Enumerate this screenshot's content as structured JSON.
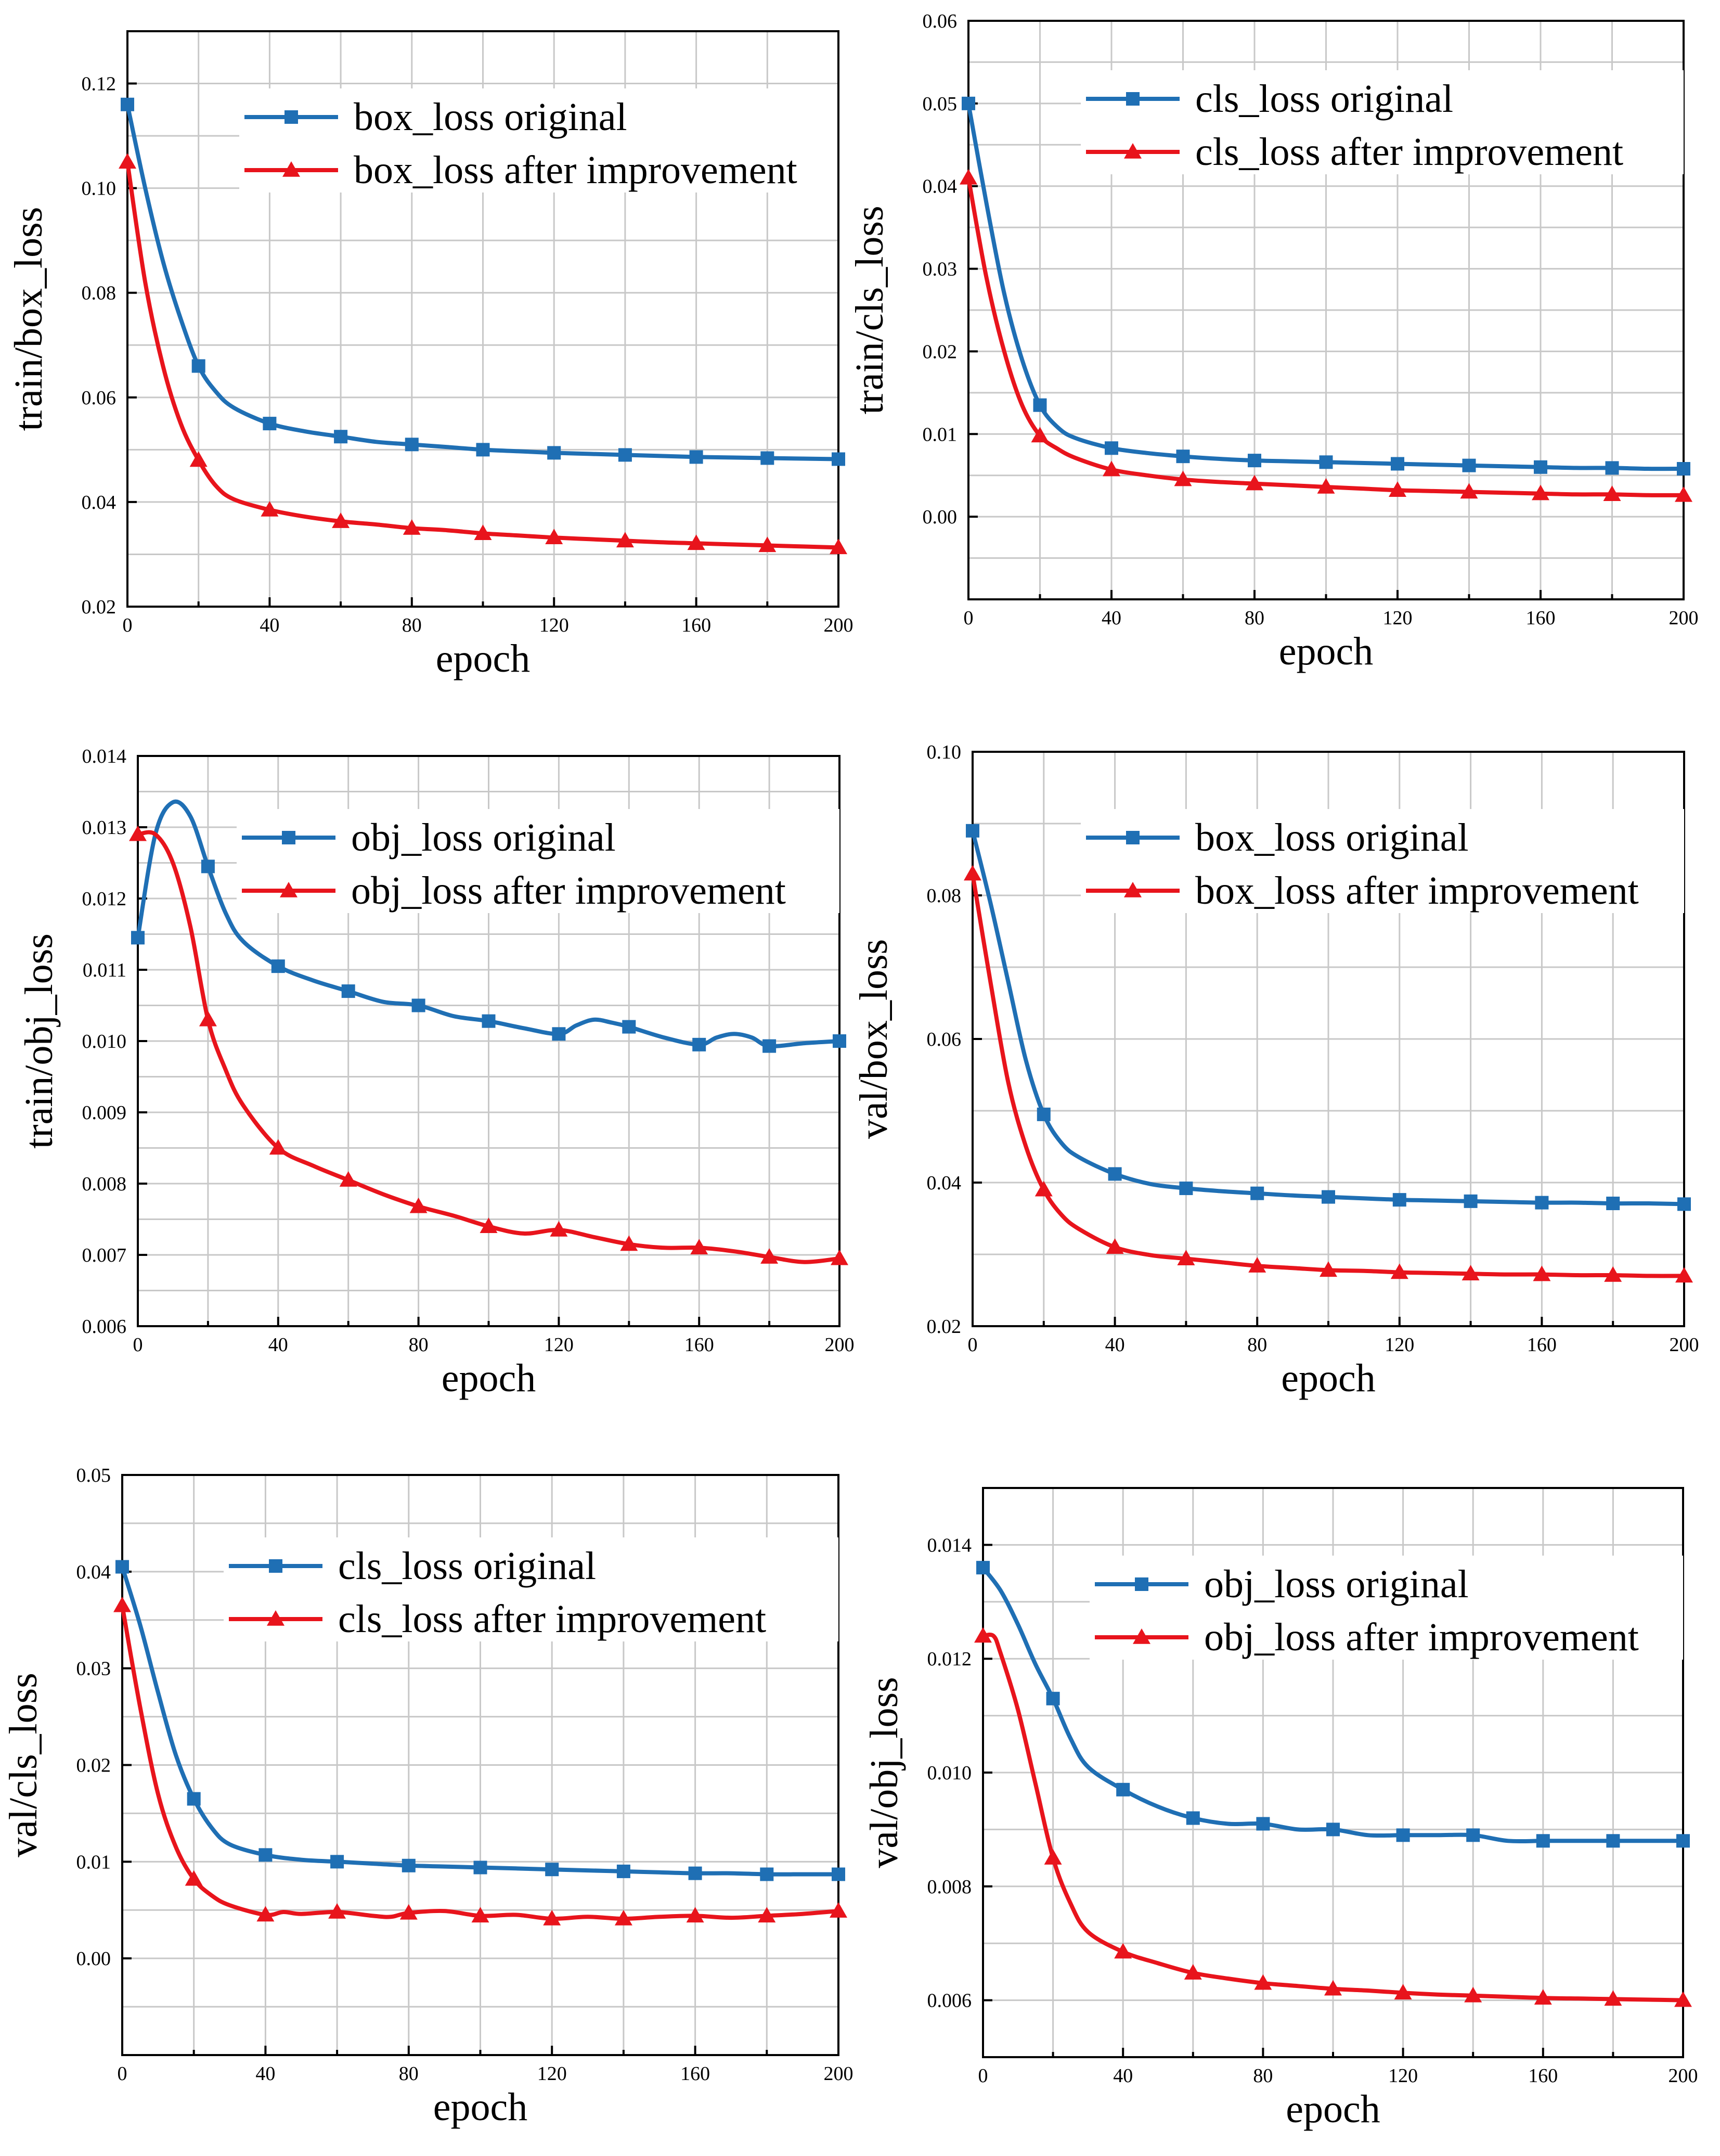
{
  "chart_data": [
    {
      "type": "line",
      "xlabel": "epoch",
      "ylabel": "train/box_loss",
      "xlim": [
        0,
        200
      ],
      "ylim": [
        0.02,
        0.13
      ],
      "xticks": [
        0,
        40,
        80,
        120,
        160,
        200
      ],
      "xtick_labels": [
        "0",
        "40",
        "80",
        "120",
        "160",
        "200"
      ],
      "yticks": [
        0.02,
        0.04,
        0.06,
        0.08,
        0.1,
        0.12
      ],
      "ytick_labels": [
        "0.02",
        "0.04",
        "0.06",
        "0.08",
        "0.10",
        "0.12"
      ],
      "legend_position": "top-right",
      "series": [
        {
          "name": "box_loss original",
          "color": "#1f6fb4",
          "marker": "square",
          "x": [
            0,
            5,
            10,
            15,
            20,
            25,
            30,
            40,
            50,
            60,
            70,
            80,
            90,
            100,
            110,
            120,
            130,
            140,
            150,
            160,
            170,
            180,
            190,
            200
          ],
          "y": [
            0.116,
            0.1,
            0.086,
            0.075,
            0.066,
            0.061,
            0.058,
            0.055,
            0.0535,
            0.0525,
            0.0515,
            0.051,
            0.0505,
            0.05,
            0.0497,
            0.0494,
            0.0492,
            0.049,
            0.0488,
            0.0486,
            0.0485,
            0.0484,
            0.0483,
            0.0482
          ],
          "marker_x": [
            0,
            20,
            40,
            60,
            80,
            100,
            120,
            140,
            160,
            180,
            200
          ]
        },
        {
          "name": "box_loss after improvement",
          "color": "#e8141c",
          "marker": "triangle",
          "x": [
            0,
            5,
            10,
            15,
            20,
            25,
            30,
            40,
            50,
            60,
            70,
            80,
            90,
            100,
            110,
            120,
            130,
            140,
            150,
            160,
            170,
            180,
            190,
            200
          ],
          "y": [
            0.105,
            0.082,
            0.066,
            0.055,
            0.048,
            0.043,
            0.0405,
            0.0385,
            0.0372,
            0.0363,
            0.0357,
            0.035,
            0.0346,
            0.034,
            0.0336,
            0.0332,
            0.0329,
            0.0326,
            0.0323,
            0.0321,
            0.0319,
            0.0317,
            0.0315,
            0.0313
          ],
          "marker_x": [
            0,
            20,
            40,
            60,
            80,
            100,
            120,
            140,
            160,
            180,
            200
          ]
        }
      ]
    },
    {
      "type": "line",
      "xlabel": "epoch",
      "ylabel": "train/cls_loss",
      "xlim": [
        0,
        200
      ],
      "ylim": [
        -0.01,
        0.06
      ],
      "xticks": [
        0,
        40,
        80,
        120,
        160,
        200
      ],
      "xtick_labels": [
        "0",
        "40",
        "80",
        "120",
        "160",
        "200"
      ],
      "yticks": [
        0.0,
        0.01,
        0.02,
        0.03,
        0.04,
        0.05,
        0.06
      ],
      "ytick_labels": [
        "0.00",
        "0.01",
        "0.02",
        "0.03",
        "0.04",
        "0.05",
        "0.06"
      ],
      "legend_position": "top-right",
      "series": [
        {
          "name": "cls_loss original",
          "color": "#1f6fb4",
          "marker": "square",
          "x": [
            0,
            5,
            10,
            15,
            20,
            25,
            30,
            40,
            50,
            60,
            70,
            80,
            90,
            100,
            110,
            120,
            130,
            140,
            150,
            160,
            170,
            180,
            190,
            200
          ],
          "y": [
            0.05,
            0.038,
            0.027,
            0.019,
            0.0135,
            0.0108,
            0.0095,
            0.0083,
            0.0077,
            0.0073,
            0.007,
            0.0068,
            0.0067,
            0.0066,
            0.0065,
            0.0064,
            0.0063,
            0.0062,
            0.0061,
            0.006,
            0.0059,
            0.0059,
            0.0058,
            0.0058
          ],
          "marker_x": [
            0,
            20,
            40,
            60,
            80,
            100,
            120,
            140,
            160,
            180,
            200
          ]
        },
        {
          "name": "cls_loss after improvement",
          "color": "#e8141c",
          "marker": "triangle",
          "x": [
            0,
            5,
            10,
            15,
            20,
            25,
            30,
            40,
            50,
            60,
            70,
            80,
            90,
            100,
            110,
            120,
            130,
            140,
            150,
            160,
            170,
            180,
            190,
            200
          ],
          "y": [
            0.041,
            0.029,
            0.02,
            0.0135,
            0.0098,
            0.0082,
            0.0071,
            0.0057,
            0.005,
            0.0045,
            0.0042,
            0.004,
            0.0038,
            0.0036,
            0.0034,
            0.0032,
            0.0031,
            0.003,
            0.0029,
            0.0028,
            0.0027,
            0.0027,
            0.0026,
            0.0026
          ],
          "marker_x": [
            0,
            20,
            40,
            60,
            80,
            100,
            120,
            140,
            160,
            180,
            200
          ]
        }
      ]
    },
    {
      "type": "line",
      "xlabel": "epoch",
      "ylabel": "train/obj_loss",
      "xlim": [
        0,
        200
      ],
      "ylim": [
        0.006,
        0.014
      ],
      "xticks": [
        0,
        40,
        80,
        120,
        160,
        200
      ],
      "xtick_labels": [
        "0",
        "40",
        "80",
        "120",
        "160",
        "200"
      ],
      "yticks": [
        0.006,
        0.007,
        0.008,
        0.009,
        0.01,
        0.011,
        0.012,
        0.013,
        0.014
      ],
      "ytick_labels": [
        "0.006",
        "0.007",
        "0.008",
        "0.009",
        "0.010",
        "0.011",
        "0.012",
        "0.013",
        "0.014"
      ],
      "legend_position": "top-right",
      "series": [
        {
          "name": "obj_loss original",
          "color": "#1f6fb4",
          "marker": "square",
          "x": [
            0,
            5,
            10,
            15,
            20,
            25,
            30,
            40,
            50,
            60,
            70,
            80,
            90,
            100,
            110,
            120,
            125,
            130,
            135,
            140,
            150,
            160,
            165,
            170,
            175,
            180,
            190,
            200
          ],
          "y": [
            0.01145,
            0.0129,
            0.01335,
            0.01315,
            0.01245,
            0.0118,
            0.0114,
            0.01105,
            0.01085,
            0.0107,
            0.01055,
            0.0105,
            0.01035,
            0.01028,
            0.01018,
            0.0101,
            0.01022,
            0.0103,
            0.01026,
            0.0102,
            0.01005,
            0.00995,
            0.01005,
            0.0101,
            0.01005,
            0.00993,
            0.00997,
            0.01
          ],
          "marker_x": [
            0,
            20,
            40,
            60,
            80,
            100,
            120,
            140,
            160,
            180,
            200
          ]
        },
        {
          "name": "obj_loss after improvement",
          "color": "#e8141c",
          "marker": "triangle",
          "x": [
            0,
            5,
            10,
            15,
            20,
            25,
            30,
            40,
            50,
            60,
            70,
            80,
            90,
            100,
            110,
            120,
            130,
            140,
            150,
            160,
            170,
            180,
            190,
            200
          ],
          "y": [
            0.0129,
            0.0129,
            0.0125,
            0.0116,
            0.0103,
            0.0096,
            0.0091,
            0.0085,
            0.00825,
            0.00805,
            0.00785,
            0.00768,
            0.00755,
            0.0074,
            0.0073,
            0.00735,
            0.00725,
            0.00715,
            0.0071,
            0.0071,
            0.00705,
            0.00697,
            0.0069,
            0.00695
          ],
          "marker_x": [
            0,
            20,
            40,
            60,
            80,
            100,
            120,
            140,
            160,
            180,
            200
          ]
        }
      ]
    },
    {
      "type": "line",
      "xlabel": "epoch",
      "ylabel": "val/box_loss",
      "xlim": [
        0,
        200
      ],
      "ylim": [
        0.02,
        0.1
      ],
      "xticks": [
        0,
        40,
        80,
        120,
        160,
        200
      ],
      "xtick_labels": [
        "0",
        "40",
        "80",
        "120",
        "160",
        "200"
      ],
      "yticks": [
        0.02,
        0.04,
        0.06,
        0.08,
        0.1
      ],
      "ytick_labels": [
        "0.02",
        "0.04",
        "0.06",
        "0.08",
        "0.10"
      ],
      "legend_position": "top-right",
      "series": [
        {
          "name": "box_loss original",
          "color": "#1f6fb4",
          "marker": "square",
          "x": [
            0,
            5,
            10,
            15,
            20,
            25,
            30,
            40,
            50,
            60,
            70,
            80,
            90,
            100,
            110,
            120,
            130,
            140,
            150,
            160,
            170,
            180,
            190,
            200
          ],
          "y": [
            0.089,
            0.079,
            0.068,
            0.057,
            0.0495,
            0.0455,
            0.0435,
            0.0412,
            0.0398,
            0.0392,
            0.0388,
            0.0385,
            0.0382,
            0.038,
            0.0378,
            0.0376,
            0.0375,
            0.0374,
            0.0373,
            0.0372,
            0.0372,
            0.0371,
            0.0371,
            0.037
          ],
          "marker_x": [
            0,
            20,
            40,
            60,
            80,
            100,
            120,
            140,
            160,
            180,
            200
          ]
        },
        {
          "name": "box_loss after improvement",
          "color": "#e8141c",
          "marker": "triangle",
          "x": [
            0,
            5,
            10,
            15,
            20,
            25,
            30,
            40,
            50,
            60,
            70,
            80,
            90,
            100,
            110,
            120,
            130,
            140,
            150,
            160,
            170,
            180,
            190,
            200
          ],
          "y": [
            0.083,
            0.068,
            0.054,
            0.045,
            0.039,
            0.0355,
            0.0335,
            0.031,
            0.0299,
            0.0294,
            0.0289,
            0.0284,
            0.0281,
            0.0278,
            0.0277,
            0.0275,
            0.0274,
            0.0273,
            0.0272,
            0.0272,
            0.0271,
            0.0271,
            0.027,
            0.027
          ],
          "marker_x": [
            0,
            20,
            40,
            60,
            80,
            100,
            120,
            140,
            160,
            180,
            200
          ]
        }
      ]
    },
    {
      "type": "line",
      "xlabel": "epoch",
      "ylabel": "val/cls_loss",
      "xlim": [
        0,
        200
      ],
      "ylim": [
        -0.01,
        0.05
      ],
      "xticks": [
        0,
        40,
        80,
        120,
        160,
        200
      ],
      "xtick_labels": [
        "0",
        "40",
        "80",
        "120",
        "160",
        "200"
      ],
      "yticks": [
        0.0,
        0.01,
        0.02,
        0.03,
        0.04,
        0.05
      ],
      "ytick_labels": [
        "0.00",
        "0.01",
        "0.02",
        "0.03",
        "0.04",
        "0.05"
      ],
      "legend_position": "top-right",
      "series": [
        {
          "name": "cls_loss original",
          "color": "#1f6fb4",
          "marker": "square",
          "x": [
            0,
            5,
            10,
            15,
            20,
            25,
            30,
            40,
            50,
            60,
            70,
            80,
            90,
            100,
            110,
            120,
            130,
            140,
            150,
            160,
            170,
            180,
            190,
            200
          ],
          "y": [
            0.0405,
            0.0345,
            0.0275,
            0.021,
            0.0165,
            0.0135,
            0.0118,
            0.0107,
            0.0102,
            0.01,
            0.0098,
            0.0096,
            0.0095,
            0.0094,
            0.0093,
            0.0092,
            0.0091,
            0.009,
            0.0089,
            0.0088,
            0.0088,
            0.0087,
            0.0087,
            0.0087
          ],
          "marker_x": [
            0,
            20,
            40,
            60,
            80,
            100,
            120,
            140,
            160,
            180,
            200
          ]
        },
        {
          "name": "cls_loss after improvement",
          "color": "#e8141c",
          "marker": "triangle",
          "x": [
            0,
            5,
            10,
            15,
            20,
            25,
            30,
            40,
            45,
            50,
            60,
            70,
            75,
            80,
            90,
            100,
            110,
            120,
            130,
            140,
            150,
            160,
            170,
            180,
            190,
            200
          ],
          "y": [
            0.0365,
            0.026,
            0.017,
            0.0115,
            0.0082,
            0.0065,
            0.0055,
            0.0045,
            0.0048,
            0.0046,
            0.0048,
            0.0044,
            0.0043,
            0.0047,
            0.0049,
            0.0044,
            0.0045,
            0.0041,
            0.0043,
            0.0041,
            0.0043,
            0.0044,
            0.0042,
            0.0044,
            0.0046,
            0.0049
          ],
          "marker_x": [
            0,
            20,
            40,
            60,
            80,
            100,
            120,
            140,
            160,
            180,
            200
          ]
        }
      ]
    },
    {
      "type": "line",
      "xlabel": "epoch",
      "ylabel": "val/obj_loss",
      "xlim": [
        0,
        200
      ],
      "ylim": [
        0.005,
        0.015
      ],
      "xticks": [
        0,
        40,
        80,
        120,
        160,
        200
      ],
      "xtick_labels": [
        "0",
        "40",
        "80",
        "120",
        "160",
        "200"
      ],
      "yticks": [
        0.006,
        0.008,
        0.01,
        0.012,
        0.014
      ],
      "ytick_labels": [
        "0.006",
        "0.008",
        "0.010",
        "0.012",
        "0.014"
      ],
      "legend_position": "top-right",
      "series": [
        {
          "name": "obj_loss original",
          "color": "#1f6fb4",
          "marker": "square",
          "x": [
            0,
            5,
            10,
            15,
            20,
            25,
            30,
            40,
            50,
            60,
            70,
            80,
            90,
            100,
            110,
            120,
            130,
            140,
            150,
            160,
            170,
            180,
            190,
            200
          ],
          "y": [
            0.0136,
            0.0132,
            0.0126,
            0.0119,
            0.0113,
            0.0106,
            0.0101,
            0.0097,
            0.0094,
            0.0092,
            0.0091,
            0.0091,
            0.009,
            0.009,
            0.0089,
            0.0089,
            0.0089,
            0.0089,
            0.0088,
            0.0088,
            0.0088,
            0.0088,
            0.0088,
            0.0088
          ],
          "marker_x": [
            0,
            20,
            40,
            60,
            80,
            100,
            120,
            140,
            160,
            180,
            200
          ]
        },
        {
          "name": "obj_loss after improvement",
          "color": "#e8141c",
          "marker": "triangle",
          "x": [
            0,
            3,
            5,
            10,
            15,
            20,
            25,
            30,
            40,
            50,
            60,
            70,
            80,
            90,
            100,
            110,
            120,
            130,
            140,
            150,
            160,
            170,
            180,
            190,
            200
          ],
          "y": [
            0.0124,
            0.0124,
            0.0121,
            0.0111,
            0.0098,
            0.0085,
            0.0077,
            0.0072,
            0.00685,
            0.00665,
            0.00648,
            0.00638,
            0.0063,
            0.00625,
            0.0062,
            0.00617,
            0.00613,
            0.0061,
            0.00608,
            0.00606,
            0.00604,
            0.00603,
            0.00602,
            0.00601,
            0.006
          ],
          "marker_x": [
            0,
            20,
            40,
            60,
            80,
            100,
            120,
            140,
            160,
            180,
            200
          ]
        }
      ]
    }
  ]
}
